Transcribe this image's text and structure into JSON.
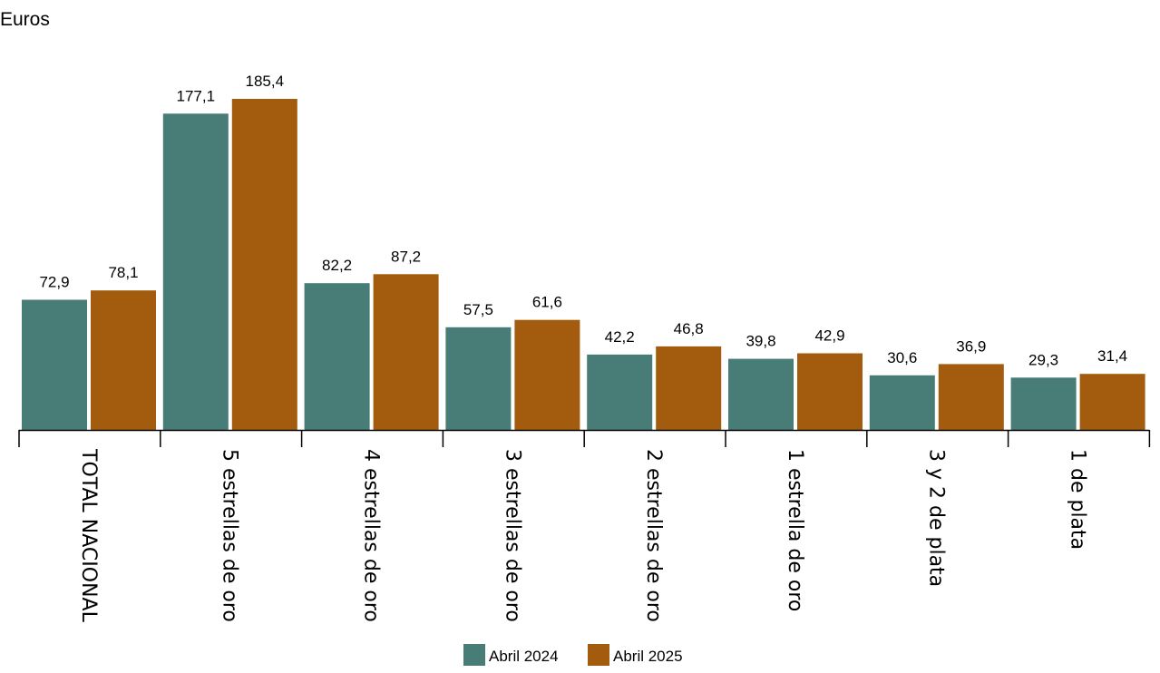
{
  "chart_data": {
    "type": "bar",
    "ylabel": "Euros",
    "categories": [
      "TOTAL NACIONAL",
      "5 estrellas de oro",
      "4 estrellas de oro",
      "3 estrellas de oro",
      "2 estrellas de oro",
      "1 estrella de oro",
      "3 y 2 de plata",
      "1 de plata"
    ],
    "series": [
      {
        "name": "Abril 2024",
        "color": "#477d76",
        "values": [
          72.9,
          177.1,
          82.2,
          57.5,
          42.2,
          39.8,
          30.6,
          29.3
        ],
        "labels": [
          "72,9",
          "177,1",
          "82,2",
          "57,5",
          "42,2",
          "39,8",
          "30,6",
          "29,3"
        ]
      },
      {
        "name": "Abril 2025",
        "color": "#a35c0d",
        "values": [
          78.1,
          185.4,
          87.2,
          61.6,
          46.8,
          42.9,
          36.9,
          31.4
        ],
        "labels": [
          "78,1",
          "185,4",
          "87,2",
          "61,6",
          "46,8",
          "42,9",
          "36,9",
          "31,4"
        ]
      }
    ],
    "ylim": [
      0,
      185.4
    ],
    "grid": false,
    "legend_position": "bottom-center"
  }
}
